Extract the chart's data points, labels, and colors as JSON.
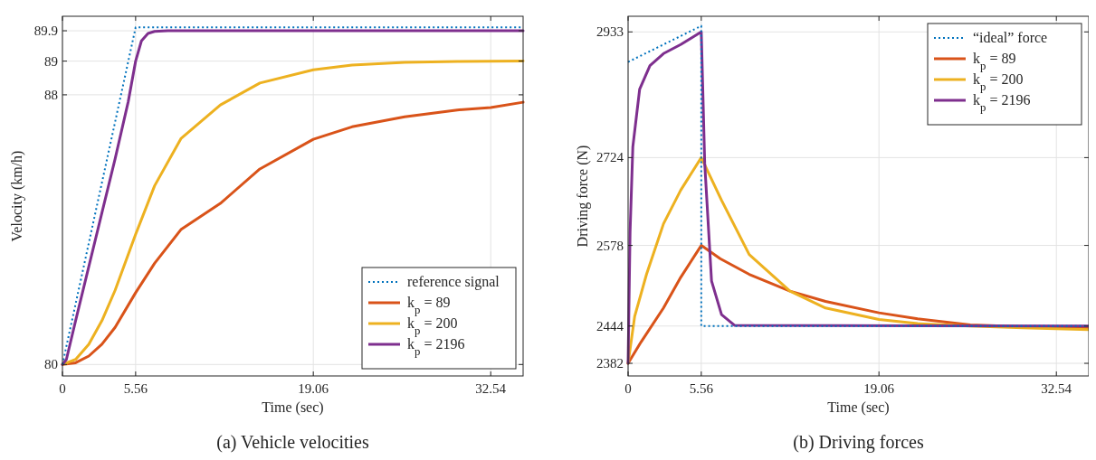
{
  "chart_data": [
    {
      "type": "line",
      "title": "(a) Vehicle velocities",
      "xlabel": "Time (sec)",
      "ylabel": "Velocity (km/h)",
      "xlim": [
        0,
        35
      ],
      "ylim": [
        79.66,
        90.33
      ],
      "xticks": [
        0,
        5.56,
        19.06,
        32.54
      ],
      "yticks": [
        80,
        88,
        89,
        89.9
      ],
      "grid": true,
      "legend": "bottom right",
      "series": [
        {
          "name": "reference signal",
          "color": "#0072bd",
          "line_style": "dotted",
          "x": [
            0,
            5.56,
            35
          ],
          "values": [
            80,
            90.0,
            90.0
          ]
        },
        {
          "name": "k$_{p}$ = 89",
          "color": "#d95319",
          "line_style": "solid",
          "x": [
            0,
            1,
            2,
            3,
            4,
            5.56,
            7,
            9,
            12,
            15,
            19.06,
            22,
            26,
            30,
            32.54,
            35
          ],
          "values": [
            80,
            80.05,
            80.25,
            80.6,
            81.1,
            82.13,
            83.0,
            84.0,
            84.78,
            85.8,
            86.68,
            87.05,
            87.35,
            87.55,
            87.62,
            87.78
          ]
        },
        {
          "name": "k$_{p}$ = 200",
          "color": "#edb120",
          "line_style": "solid",
          "x": [
            0,
            1,
            2,
            3,
            4,
            5.56,
            7,
            9,
            12,
            15,
            19.06,
            22,
            26,
            30,
            35
          ],
          "values": [
            80,
            80.15,
            80.6,
            81.3,
            82.2,
            83.86,
            85.3,
            86.7,
            87.7,
            88.35,
            88.74,
            88.88,
            88.96,
            88.99,
            89.0
          ]
        },
        {
          "name": "k$_{p}$ = 2196",
          "color": "#7e2f8e",
          "line_style": "solid",
          "x": [
            0,
            0.3,
            1,
            2,
            3,
            4,
            5,
            5.56,
            6,
            6.5,
            7,
            8,
            35
          ],
          "values": [
            80,
            80.15,
            81.3,
            82.9,
            84.5,
            86.1,
            87.8,
            89.0,
            89.6,
            89.82,
            89.88,
            89.9,
            89.9
          ]
        }
      ]
    },
    {
      "type": "line",
      "title": "(b) Driving forces",
      "xlabel": "Time (sec)",
      "ylabel": "Driving force (N)",
      "xlim": [
        0,
        35
      ],
      "ylim": [
        2361,
        2959
      ],
      "xticks": [
        0,
        5.56,
        19.06,
        32.54
      ],
      "yticks": [
        2382,
        2444,
        2578,
        2724,
        2933
      ],
      "grid": true,
      "legend": "top right",
      "series": [
        {
          "name": "“ideal” force",
          "color": "#0072bd",
          "line_style": "dotted",
          "x": [
            0,
            5.56,
            5.56,
            35
          ],
          "values": [
            2883,
            2943,
            2444,
            2444
          ]
        },
        {
          "name": "k$_{p}$ = 89",
          "color": "#d95319",
          "line_style": "solid",
          "x": [
            0,
            1,
            2.69,
            4,
            5.56,
            7,
            9.2,
            12.3,
            15,
            19.06,
            22,
            26,
            30,
            35
          ],
          "values": [
            2382,
            2418,
            2474,
            2525,
            2578,
            2556,
            2530,
            2502,
            2485,
            2466,
            2456,
            2446,
            2443,
            2441
          ]
        },
        {
          "name": "k$_{p}$ = 200",
          "color": "#edb120",
          "line_style": "solid",
          "x": [
            0,
            0.5,
            1.4,
            2.69,
            4,
            5.56,
            7.1,
            9.2,
            12.3,
            15,
            19.06,
            22,
            26,
            30,
            35
          ],
          "values": [
            2382,
            2460,
            2530,
            2614,
            2670,
            2724,
            2653,
            2563,
            2502,
            2474,
            2455,
            2448,
            2444,
            2441,
            2438
          ]
        },
        {
          "name": "k$_{p}$ = 2196",
          "color": "#7e2f8e",
          "line_style": "solid",
          "x": [
            0,
            0.15,
            0.36,
            0.88,
            1.66,
            2.69,
            4,
            5.56,
            5.82,
            6.34,
            7.1,
            8.1,
            35
          ],
          "values": [
            2382,
            2600,
            2742,
            2838,
            2877,
            2897,
            2912,
            2933,
            2715,
            2519,
            2463,
            2445,
            2444
          ]
        }
      ]
    }
  ]
}
